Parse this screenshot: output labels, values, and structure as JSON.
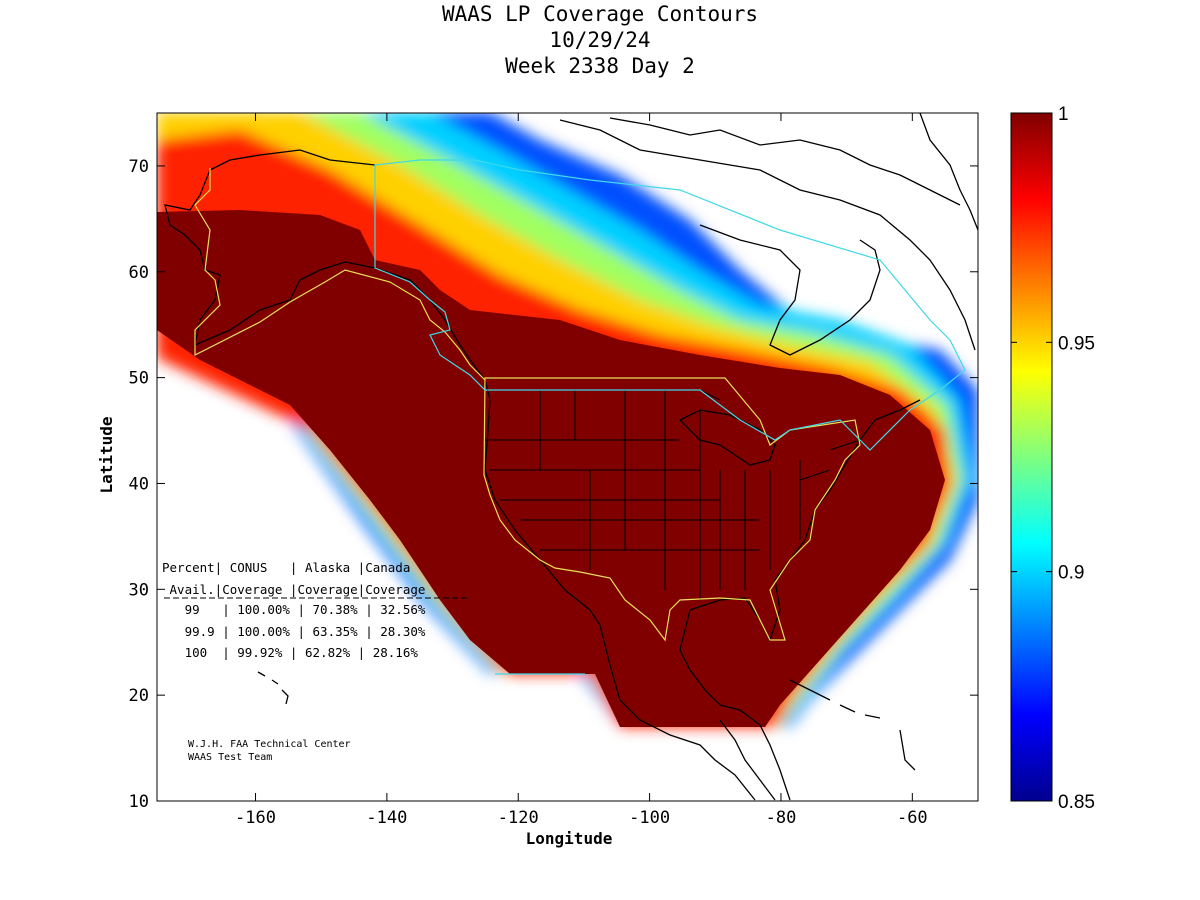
{
  "title": {
    "line1": "WAAS LP Coverage Contours",
    "line2": "10/29/24",
    "line3": "Week 2338 Day 2"
  },
  "axes": {
    "xlabel": "Longitude",
    "ylabel": "Latitude",
    "xlim": [
      -175,
      -50
    ],
    "ylim": [
      10,
      75
    ],
    "xticks": [
      -160,
      -140,
      -120,
      -100,
      -80,
      -60
    ],
    "yticks": [
      10,
      20,
      30,
      40,
      50,
      60,
      70
    ],
    "xtick_labels": [
      "-160",
      "-140",
      "-120",
      "-100",
      "-80",
      "-60"
    ],
    "ytick_labels": [
      "10",
      "20",
      "30",
      "40",
      "50",
      "60",
      "70"
    ]
  },
  "colorbar": {
    "range": [
      0.85,
      1
    ],
    "ticks": [
      0.85,
      0.9,
      0.95,
      1
    ],
    "tick_labels": [
      "0.85",
      "0.9",
      "0.95",
      "1"
    ],
    "colormap": "jet"
  },
  "stats_table": {
    "header1": "Percent| CONUS   | Alaska |Canada",
    "header2": " Avail.|Coverage |Coverage|Coverage",
    "rows": [
      "   99   | 100.00% | 70.38% | 32.56%",
      "   99.9 | 100.00% | 63.35% | 28.30%",
      "   100  | 99.92% | 62.82% | 28.16%"
    ]
  },
  "credit": {
    "line1": "W.J.H. FAA Technical Center",
    "line2": "WAAS Test Team"
  },
  "chart_data": {
    "type": "heatmap",
    "title": "WAAS LP Coverage Contours",
    "xlabel": "Longitude",
    "ylabel": "Latitude",
    "xlim": [
      -175,
      -50
    ],
    "ylim": [
      10,
      75
    ],
    "value_range": [
      0.85,
      1
    ],
    "colormap": "jet",
    "coverage_table": {
      "columns": [
        "Percent Avail.",
        "CONUS Coverage",
        "Alaska Coverage",
        "Canada Coverage"
      ],
      "rows": [
        [
          "99",
          "100.00%",
          "70.38%",
          "32.56%"
        ],
        [
          "99.9",
          "100.00%",
          "63.35%",
          "28.30%"
        ],
        [
          "100",
          "99.92%",
          "62.82%",
          "28.16%"
        ]
      ]
    }
  },
  "colors": {
    "full_coverage": "#800000",
    "service_boundary": "#e8e05a",
    "canada_boundary": "#40d8e8",
    "coastline": "#000000"
  }
}
